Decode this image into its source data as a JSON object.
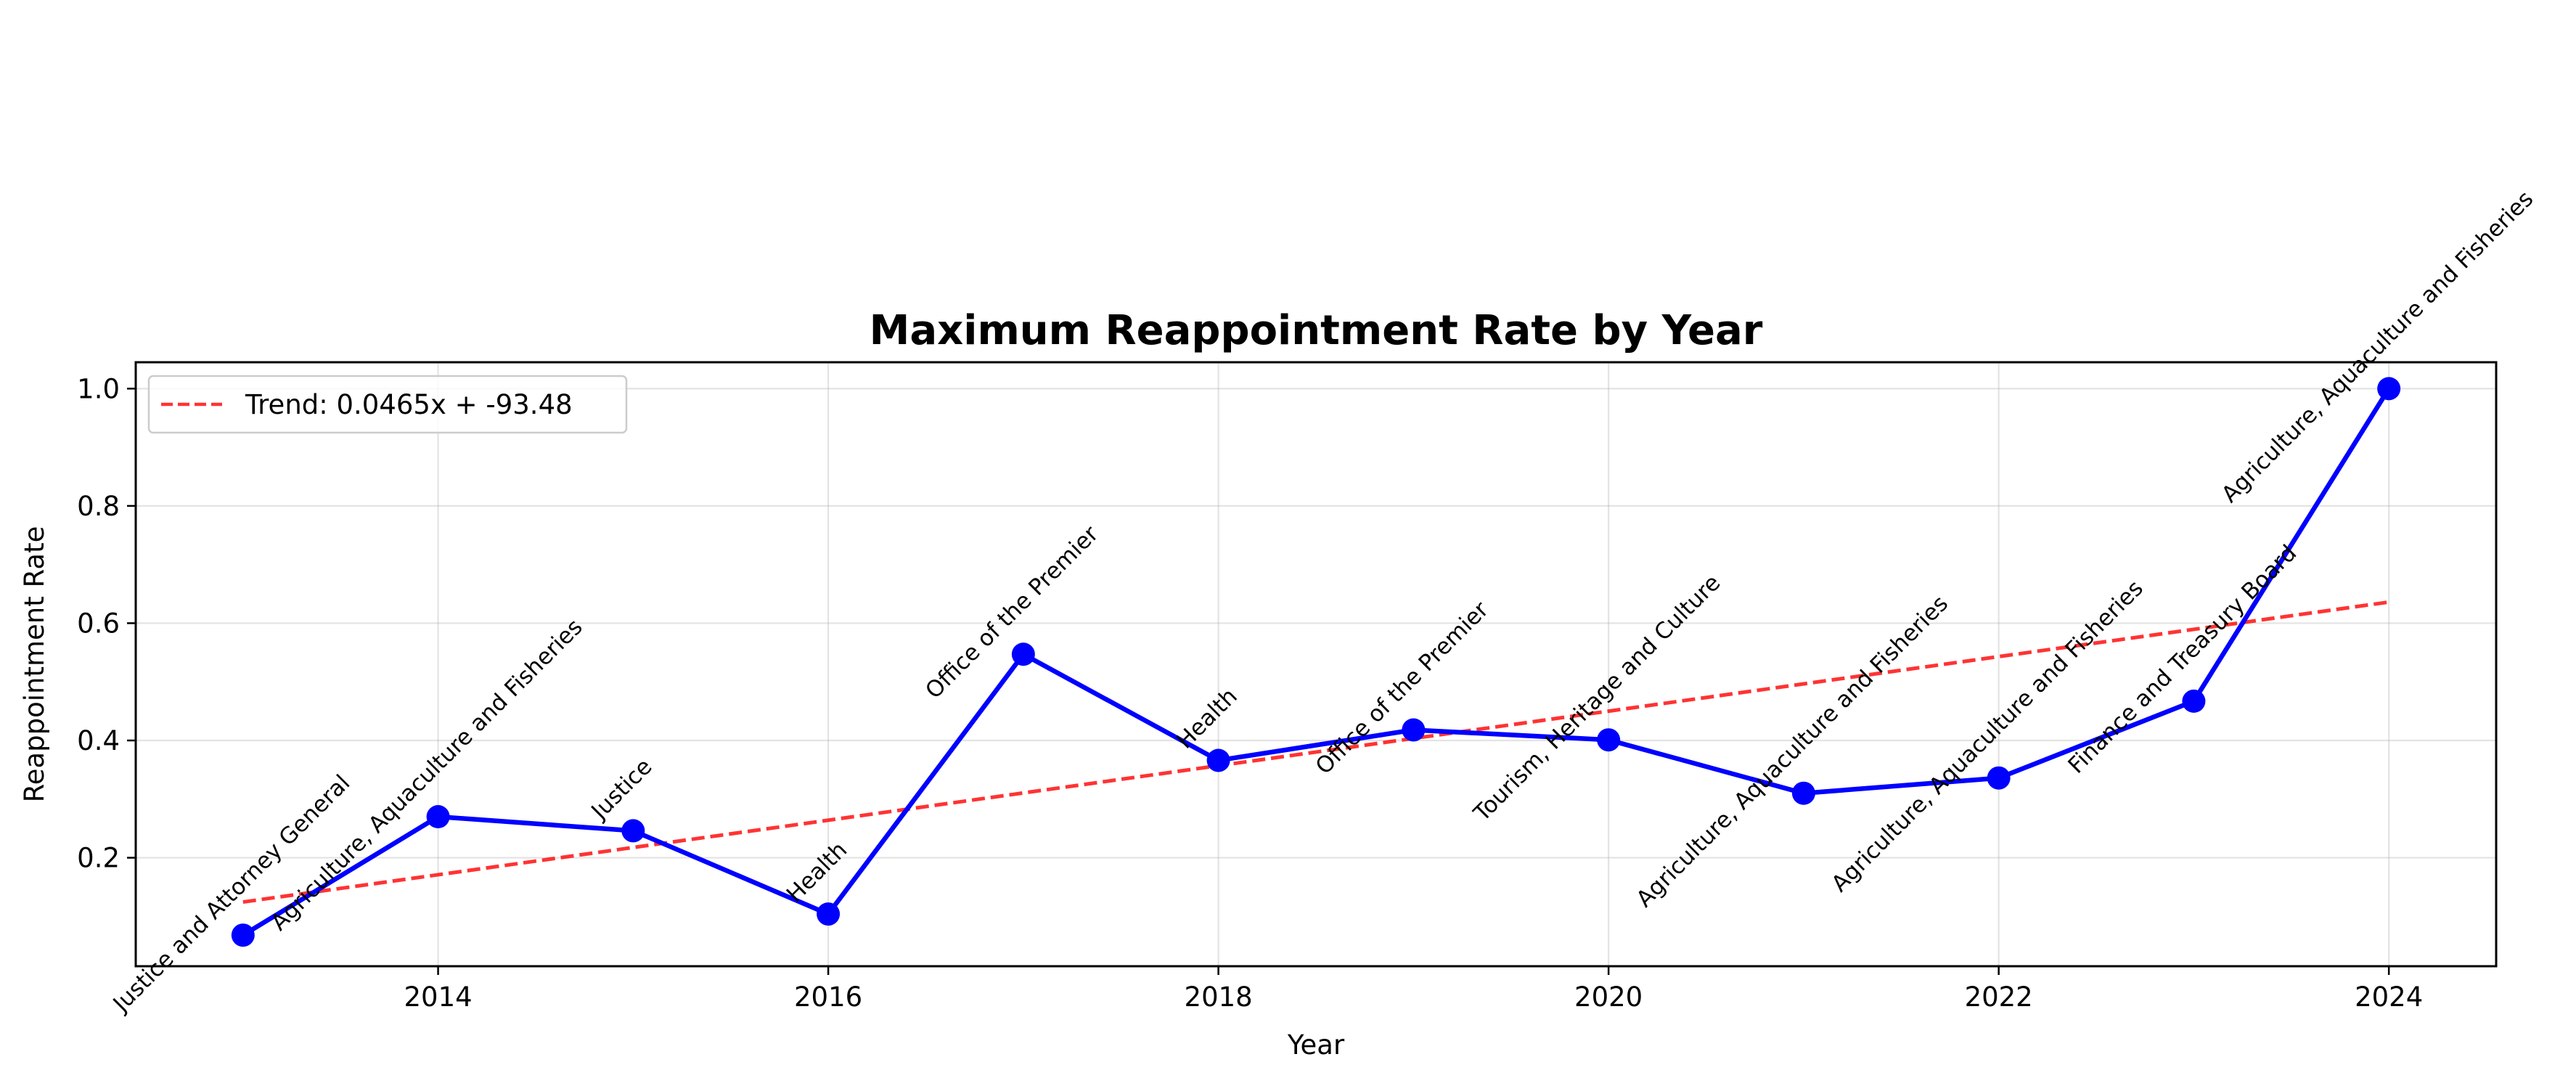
{
  "chart_data": {
    "type": "line",
    "title": "Maximum Reappointment Rate by Year",
    "xlabel": "Year",
    "ylabel": "Reappointment Rate",
    "xlim": [
      2012.45,
      2024.55
    ],
    "ylim": [
      0.015,
      1.045
    ],
    "xticks": [
      2014,
      2016,
      2018,
      2020,
      2022,
      2024
    ],
    "yticks": [
      0.2,
      0.4,
      0.6,
      0.8,
      1.0
    ],
    "xtick_labels": [
      "2014",
      "2016",
      "2018",
      "2020",
      "2022",
      "2024"
    ],
    "ytick_labels": [
      "0.2",
      "0.4",
      "0.6",
      "0.8",
      "1.0"
    ],
    "grid": true,
    "legend_position": "top-left",
    "series": [
      {
        "kind": "line-marker",
        "color": "#0000ff",
        "x": [
          2013,
          2014,
          2015,
          2016,
          2017,
          2018,
          2019,
          2020,
          2021,
          2022,
          2023,
          2024
        ],
        "values": [
          0.068,
          0.27,
          0.246,
          0.104,
          0.547,
          0.366,
          0.418,
          0.401,
          0.31,
          0.336,
          0.467,
          1.0
        ],
        "annotations": [
          "Justice and Attorney General",
          "Agriculture, Aquaculture and Fisheries",
          "Justice",
          "Health",
          "Office of the Premier",
          "Health",
          "Office of the Premier",
          "Tourism, Heritage and Culture",
          "Agriculture, Aquaculture and Fisheries",
          "Agriculture, Aquaculture and Fisheries",
          "Finance and Treasury Board",
          "Agriculture, Aquaculture and Fisheries"
        ]
      },
      {
        "kind": "trend",
        "name": "Trend: 0.0465x + -93.48",
        "color": "#ff0000",
        "dashed": true,
        "x": [
          2013,
          2024
        ],
        "values": [
          0.1245,
          0.636
        ]
      }
    ]
  }
}
